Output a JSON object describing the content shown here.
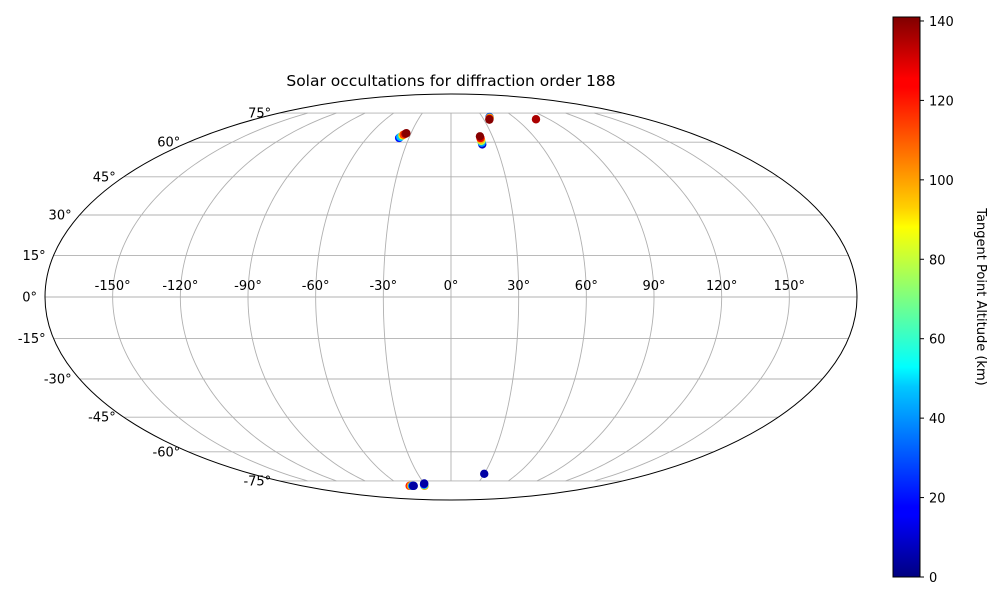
{
  "chart_data": {
    "type": "scatter",
    "projection": "mollweide",
    "title": "Solar occultations for diffraction order 188",
    "x_tick_labels": [
      "-150°",
      "-120°",
      "-90°",
      "-60°",
      "-30°",
      "0°",
      "30°",
      "60°",
      "90°",
      "120°",
      "150°"
    ],
    "y_tick_labels": [
      "-75°",
      "-60°",
      "-45°",
      "-30°",
      "-15°",
      "0°",
      "15°",
      "30°",
      "45°",
      "60°",
      "75°"
    ],
    "grid": true,
    "colorbar": {
      "label": "Tangent Point Altitude (km)",
      "colormap": "jet",
      "range": [
        0,
        141
      ],
      "ticks": [
        "0",
        "20",
        "40",
        "60",
        "80",
        "100",
        "120",
        "140"
      ]
    },
    "points": [
      {
        "lon": -37,
        "lat": 62,
        "alt": 20
      },
      {
        "lon": -36.5,
        "lat": 62.5,
        "alt": 45
      },
      {
        "lon": -35.5,
        "lat": 63.2,
        "alt": 90
      },
      {
        "lon": -35,
        "lat": 63.6,
        "alt": 115
      },
      {
        "lon": -34,
        "lat": 64,
        "alt": 135
      },
      {
        "lon": -33.5,
        "lat": 64.3,
        "alt": 140
      },
      {
        "lon": 21,
        "lat": 59,
        "alt": 10
      },
      {
        "lon": 21,
        "lat": 59.8,
        "alt": 40
      },
      {
        "lon": 21,
        "lat": 60.6,
        "alt": 80
      },
      {
        "lon": 21,
        "lat": 61.3,
        "alt": 100
      },
      {
        "lon": 21,
        "lat": 62,
        "alt": 125
      },
      {
        "lon": 21,
        "lat": 62.8,
        "alt": 140
      },
      {
        "lon": 37,
        "lat": 72.8,
        "alt": 30
      },
      {
        "lon": 36.5,
        "lat": 72.3,
        "alt": 100
      },
      {
        "lon": 35.5,
        "lat": 71.7,
        "alt": 130
      },
      {
        "lon": 35,
        "lat": 71.3,
        "alt": 140
      },
      {
        "lon": 78,
        "lat": 71.5,
        "alt": 135
      },
      {
        "lon": -50,
        "lat": -78,
        "alt": 120
      },
      {
        "lon": -48.5,
        "lat": -78,
        "alt": 100
      },
      {
        "lon": -47,
        "lat": -78,
        "alt": 40
      },
      {
        "lon": -46,
        "lat": -78,
        "alt": 10
      },
      {
        "lon": -45,
        "lat": -78,
        "alt": 5
      },
      {
        "lon": -32,
        "lat": -78,
        "alt": 100
      },
      {
        "lon": -31.5,
        "lat": -77.5,
        "alt": 60
      },
      {
        "lon": -31,
        "lat": -77,
        "alt": 20
      },
      {
        "lon": -30,
        "lat": -76.5,
        "alt": 5
      },
      {
        "lon": 30,
        "lat": -71,
        "alt": 5
      }
    ]
  }
}
